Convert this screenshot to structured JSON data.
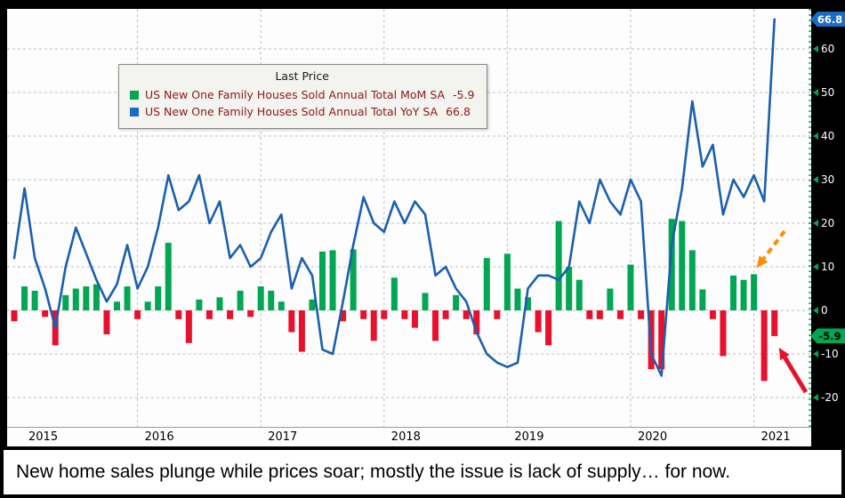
{
  "caption": {
    "text": "New home sales plunge while prices soar; mostly the issue is lack of supply… for now."
  },
  "legend": {
    "title": "Last Price",
    "series": [
      {
        "label": "US New One Family Houses Sold Annual Total MoM SA",
        "value": "-5.9",
        "color": "#00a651"
      },
      {
        "label": "US New One Family Houses Sold Annual Total YoY SA",
        "value": "66.8",
        "color": "#1b6cc8"
      }
    ]
  },
  "axis": {
    "y_ticks": [
      60,
      50,
      40,
      30,
      20,
      10,
      0,
      -10,
      -20
    ],
    "x_ticks": [
      "2015",
      "2016",
      "2017",
      "2018",
      "2019",
      "2020",
      "2021"
    ],
    "badges": [
      {
        "text": "66.8",
        "value": 66.8,
        "bg": "#1b6cc8",
        "fg": "#ffffff"
      },
      {
        "text": "-5.9",
        "value": -5.9,
        "bg": "#00a651",
        "fg": "#000000"
      }
    ]
  },
  "chart_data": {
    "type": "combo-bar-line",
    "x_start": "2015-01",
    "x_end": "2021-03",
    "x_frequency": "monthly",
    "x_tick_labels": [
      "2015",
      "2016",
      "2017",
      "2018",
      "2019",
      "2020",
      "2021"
    ],
    "ylim": [
      -26,
      70
    ],
    "y_ticks": [
      60,
      50,
      40,
      30,
      20,
      10,
      0,
      -10,
      -20
    ],
    "grid": "dashed gray, horizontal every 10 units and vertical at each year",
    "legend_position": "upper-left box titled Last Price",
    "series": [
      {
        "name": "US New One Family Houses Sold Annual Total MoM SA",
        "type": "bar",
        "last_value": -5.9,
        "pos_color": "#00a651",
        "neg_color": "#e8112d",
        "values": [
          -2.5,
          5.5,
          4.5,
          -1.5,
          -8,
          3.5,
          5,
          5.5,
          6,
          -5.5,
          2,
          5.5,
          -2,
          2,
          5.5,
          15.5,
          -2,
          -7.5,
          2.5,
          -2,
          3,
          -2,
          4.5,
          -1.5,
          5.5,
          4.5,
          2,
          -5,
          -9.5,
          2.5,
          13.5,
          13.8,
          -2.5,
          14,
          -2,
          -7,
          -2,
          7.5,
          -2,
          -4,
          4,
          -7,
          -2,
          3.5,
          -2,
          -5.5,
          12,
          -2,
          13,
          5,
          3,
          -5,
          -8,
          20.5,
          10,
          7,
          -2,
          -2,
          5,
          -2,
          10.5,
          -2,
          -13.5,
          -13.5,
          21,
          20.5,
          13.8,
          4.8,
          -2,
          -10.5,
          8,
          7,
          8.3,
          -16.2,
          -5.9
        ]
      },
      {
        "name": "US New One Family Houses Sold Annual Total YoY SA",
        "type": "line",
        "last_value": 66.8,
        "color": "#1b5fad",
        "values": [
          12,
          28,
          12,
          5,
          -4,
          10,
          19,
          13,
          7,
          2,
          6,
          15,
          5,
          10,
          19,
          31,
          23,
          25,
          31,
          20,
          25,
          12,
          15,
          10,
          12,
          18,
          22,
          5,
          12,
          8,
          -9,
          -10,
          2,
          15,
          26,
          20,
          18,
          25,
          20,
          25,
          22,
          8,
          10,
          5,
          2,
          -5,
          -10,
          -12,
          -13,
          -12,
          5,
          8,
          8,
          7,
          10,
          25,
          20,
          30,
          25,
          22,
          30,
          25,
          -10,
          -15,
          15,
          28,
          48,
          33,
          38,
          22,
          30,
          26,
          31,
          25,
          66.8
        ]
      }
    ],
    "annotations": [
      {
        "shape": "arrow",
        "color": "#ff8c00",
        "line_style": "dashed",
        "target": "last-positive-mom-bar",
        "direction": "points-down-left"
      },
      {
        "shape": "arrow",
        "color": "#e8112d",
        "line_style": "solid",
        "target": "final-mom-bar",
        "direction": "points-up-left"
      }
    ]
  }
}
